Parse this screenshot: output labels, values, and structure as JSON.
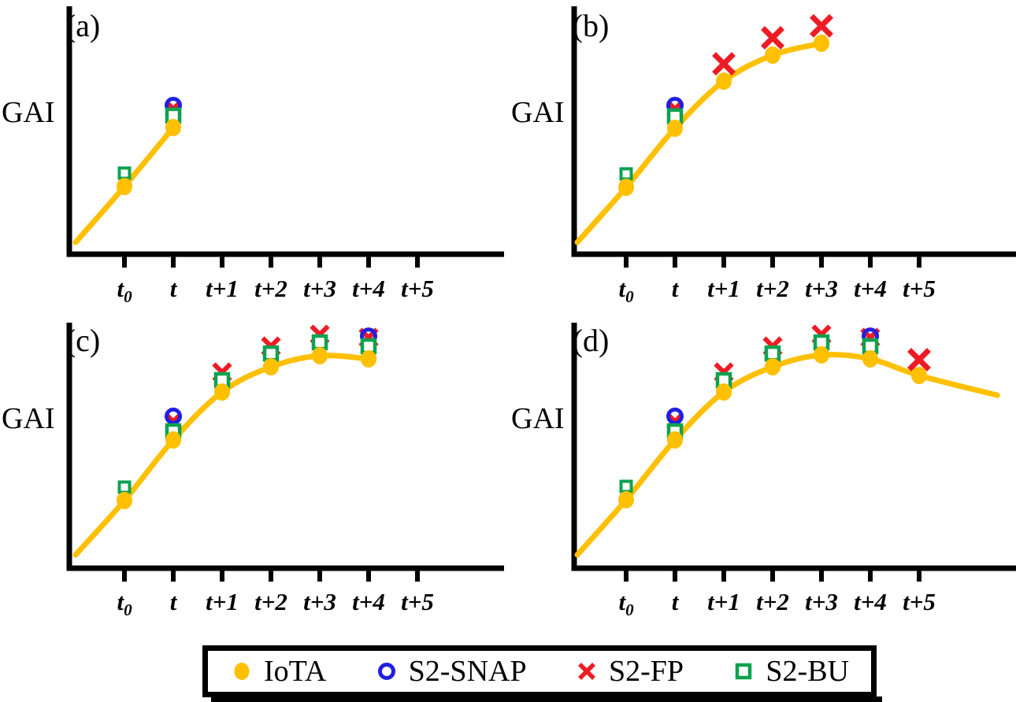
{
  "colors": {
    "iota": "#FFC000",
    "snap": "#2020E0",
    "fp": "#ED1C24",
    "bu": "#0CA24F",
    "axis": "#000000"
  },
  "legend": {
    "items": [
      {
        "label": "IoTA",
        "marker": "filled-circle"
      },
      {
        "label": "S2-SNAP",
        "marker": "open-circle"
      },
      {
        "label": "S2-FP",
        "marker": "x-cross"
      },
      {
        "label": "S2-BU",
        "marker": "open-square"
      }
    ]
  },
  "chart_data": [
    {
      "panel": "a",
      "title": "(a)",
      "type": "line+scatter",
      "ylabel": "GAI",
      "x_tick_labels": [
        "t0",
        "t",
        "t+1",
        "t+2",
        "t+3",
        "t+4",
        "t+5"
      ],
      "x_units_note": "x in time steps: t0=0, t=1, t+1=2, t+2=3, t+3=4, t+4=5, t+5=6",
      "y_axis_note": "GAI axis unlabeled; y values relative 0-1 of axis height",
      "curve_iota": [
        [
          -1,
          0.048
        ],
        [
          0,
          0.273
        ],
        [
          1,
          0.511
        ]
      ],
      "series": {
        "IoTA": [
          [
            0,
            0.273
          ],
          [
            1,
            0.511
          ]
        ],
        "S2-SNAP": [
          [
            1,
            0.6
          ]
        ],
        "S2-FP": [
          [
            1,
            0.587,
            "sm"
          ]
        ],
        "S2-BU": [
          [
            0,
            0.327,
            "sm"
          ],
          [
            1,
            0.559
          ]
        ]
      }
    },
    {
      "panel": "b",
      "title": "(b)",
      "type": "line+scatter",
      "ylabel": "GAI",
      "x_tick_labels": [
        "t0",
        "t",
        "t+1",
        "t+2",
        "t+3",
        "t+4",
        "t+5"
      ],
      "x_units_note": "x in time steps: t0=0, t=1, t+1=2, t+2=3, t+3=4, t+4=5, t+5=6",
      "y_axis_note": "GAI axis unlabeled; y values relative 0-1 of axis height",
      "curve_iota": [
        [
          -1,
          0.048
        ],
        [
          0,
          0.27
        ],
        [
          1,
          0.508
        ],
        [
          2,
          0.698
        ],
        [
          3,
          0.803
        ],
        [
          4,
          0.851
        ]
      ],
      "series": {
        "IoTA": [
          [
            0,
            0.27
          ],
          [
            1,
            0.508
          ],
          [
            2,
            0.698
          ],
          [
            3,
            0.803
          ],
          [
            4,
            0.851
          ]
        ],
        "S2-SNAP": [
          [
            1,
            0.6
          ]
        ],
        "S2-FP": [
          [
            1,
            0.587,
            "sm"
          ],
          [
            2,
            0.768,
            "big"
          ],
          [
            3,
            0.873,
            "big"
          ],
          [
            4,
            0.921,
            "big"
          ]
        ],
        "S2-BU": [
          [
            0,
            0.324,
            "sm"
          ],
          [
            1,
            0.556
          ]
        ]
      }
    },
    {
      "panel": "c",
      "title": "(c)",
      "type": "line+scatter",
      "ylabel": "GAI",
      "x_tick_labels": [
        "t0",
        "t",
        "t+1",
        "t+2",
        "t+3",
        "t+4",
        "t+5"
      ],
      "x_units_note": "x in time steps: t0=0, t=1, t+1=2, t+2=3, t+3=4, t+4=5, t+5=6",
      "y_axis_note": "GAI axis unlabeled; y values relative 0-1 of axis height",
      "curve_iota": [
        [
          -1,
          0.054
        ],
        [
          0,
          0.274
        ],
        [
          1,
          0.519
        ],
        [
          2,
          0.713
        ],
        [
          3,
          0.815
        ],
        [
          4,
          0.86
        ],
        [
          5,
          0.847
        ]
      ],
      "series": {
        "IoTA": [
          [
            0,
            0.274
          ],
          [
            1,
            0.519
          ],
          [
            2,
            0.713
          ],
          [
            3,
            0.815
          ],
          [
            4,
            0.86
          ],
          [
            5,
            0.847
          ]
        ],
        "S2-SNAP": [
          [
            1,
            0.615
          ],
          [
            5,
            0.939
          ]
        ],
        "S2-FP": [
          [
            1,
            0.595,
            "sm"
          ],
          [
            2,
            0.793
          ],
          [
            3,
            0.898
          ],
          [
            4,
            0.946
          ],
          [
            5,
            0.933
          ]
        ],
        "S2-BU": [
          [
            0,
            0.328,
            "sm"
          ],
          [
            1,
            0.554
          ],
          [
            2,
            0.761
          ],
          [
            3,
            0.869
          ],
          [
            4,
            0.914
          ],
          [
            5,
            0.898
          ]
        ]
      }
    },
    {
      "panel": "d",
      "title": "(d)",
      "type": "line+scatter",
      "ylabel": "GAI",
      "x_tick_labels": [
        "t0",
        "t",
        "t+1",
        "t+2",
        "t+3",
        "t+4",
        "t+5"
      ],
      "x_units_note": "x in time steps: t0=0, t=1, t+1=2, t+2=3, t+3=4, t+4=5, t+5=6",
      "y_axis_note": "GAI axis unlabeled; y values relative 0-1 of axis height",
      "curve_iota": [
        [
          -1,
          0.054
        ],
        [
          0,
          0.277
        ],
        [
          1,
          0.519
        ],
        [
          2,
          0.713
        ],
        [
          3,
          0.815
        ],
        [
          4,
          0.863
        ],
        [
          5,
          0.847
        ],
        [
          6,
          0.78
        ],
        [
          7.6,
          0.7
        ]
      ],
      "series": {
        "IoTA": [
          [
            0,
            0.277
          ],
          [
            1,
            0.519
          ],
          [
            2,
            0.713
          ],
          [
            3,
            0.815
          ],
          [
            4,
            0.863
          ],
          [
            5,
            0.847
          ],
          [
            6,
            0.78
          ]
        ],
        "S2-SNAP": [
          [
            1,
            0.615
          ],
          [
            5,
            0.939
          ]
        ],
        "S2-FP": [
          [
            1,
            0.595,
            "sm"
          ],
          [
            2,
            0.793
          ],
          [
            3,
            0.898
          ],
          [
            4,
            0.946
          ],
          [
            5,
            0.933
          ],
          [
            6,
            0.844,
            "big"
          ]
        ],
        "S2-BU": [
          [
            0,
            0.331,
            "sm"
          ],
          [
            1,
            0.554
          ],
          [
            2,
            0.761
          ],
          [
            3,
            0.869
          ],
          [
            4,
            0.914
          ],
          [
            5,
            0.898
          ]
        ]
      }
    }
  ]
}
